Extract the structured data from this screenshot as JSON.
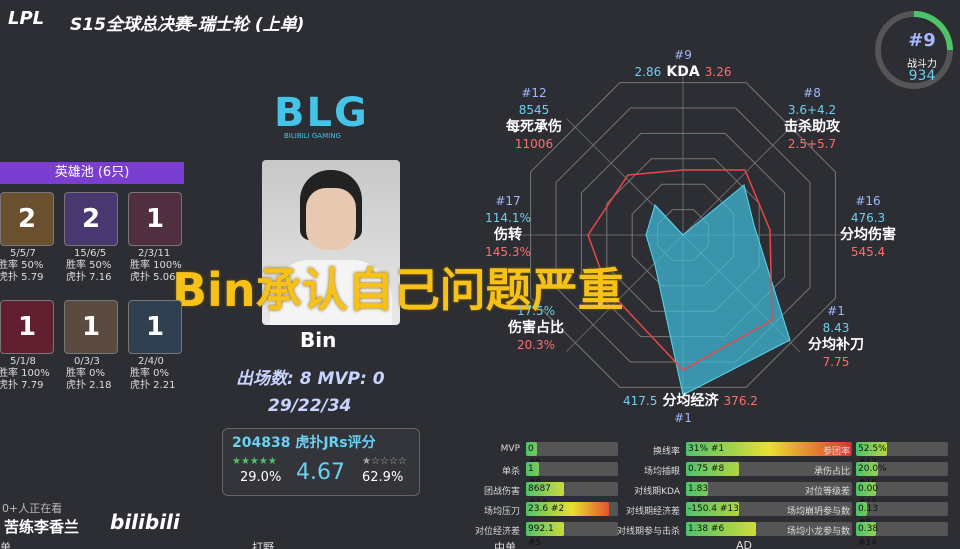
{
  "header": {
    "logo": "LPL",
    "title": "S15全球总决赛-瑞士轮 (上单)"
  },
  "power": {
    "rank": "#9",
    "label": "战斗力",
    "value": "934"
  },
  "team": {
    "logo": "BLG",
    "name": "BILIBILI GAMING"
  },
  "hero_pool": {
    "title": "英雄池 (6只)",
    "heroes": [
      {
        "games": "2",
        "kda": "5/5/7",
        "win_rate": "胜率 50%",
        "hupu": "虎扑 5.79"
      },
      {
        "games": "2",
        "kda": "15/6/5",
        "win_rate": "胜率 50%",
        "hupu": "虎扑 7.16"
      },
      {
        "games": "1",
        "kda": "2/3/11",
        "win_rate": "胜率 100%",
        "hupu": "虎扑 5.06"
      },
      {
        "games": "1",
        "kda": "5/1/8",
        "win_rate": "胜率 100%",
        "hupu": "虎扑 7.79"
      },
      {
        "games": "1",
        "kda": "0/3/3",
        "win_rate": "胜率 0%",
        "hupu": "虎扑 2.18"
      },
      {
        "games": "1",
        "kda": "2/4/0",
        "win_rate": "胜率 0%",
        "hupu": "虎扑 2.21"
      }
    ]
  },
  "player": {
    "name": "Bin",
    "stats": "出场数: 8  MVP: 0",
    "kda": "29/22/34"
  },
  "rating": {
    "title": "204838 虎扑JRs评分",
    "low_share": "29.0%",
    "score": "4.67",
    "high_share": "62.9%"
  },
  "radar": {
    "axes": [
      {
        "rank": "#9",
        "label": "KDA",
        "value": "2.86",
        "average": "3.26"
      },
      {
        "rank": "#8",
        "label": "击杀助攻",
        "value": "3.6+4.2",
        "average": "2.5+5.7"
      },
      {
        "rank": "#16",
        "label": "分均伤害",
        "value": "476.3",
        "average": "545.4"
      },
      {
        "rank": "#1",
        "label": "分均补刀",
        "value": "8.43",
        "average": "7.75"
      },
      {
        "rank": "#1",
        "label": "分均经济",
        "value": "417.5",
        "average": "376.2"
      },
      {
        "label": "伤害占比",
        "value": "17.5%",
        "average": "20.3%"
      },
      {
        "rank": "#17",
        "label": "伤转",
        "value": "114.1%",
        "average": "145.3%"
      },
      {
        "rank": "#12",
        "label": "每死承伤",
        "value": "8545",
        "average": "11006"
      }
    ]
  },
  "caption": "Bin承认自己问题严重",
  "stats": {
    "columns": [
      [
        {
          "label": "MVP",
          "value": "0 #5"
        },
        {
          "label": "单杀",
          "value": "1 #9"
        },
        {
          "label": "团战伤害",
          "value": "8687 #14"
        },
        {
          "label": "场均压刀",
          "value": "23.6 #2"
        },
        {
          "label": "对位经济差",
          "value": "992.1 #5"
        }
      ],
      [
        {
          "label": "换线率",
          "value": "31% #1"
        },
        {
          "label": "场均插眼",
          "value": "0.75 #8"
        },
        {
          "label": "对线期KDA",
          "value": "1.83 #8"
        },
        {
          "label": "对线期经济差",
          "value": "-150.4 #13"
        },
        {
          "label": "对线期参与击杀",
          "value": "1.38 #6"
        }
      ],
      [
        {
          "label": "参团率",
          "value": "52.5% #12"
        },
        {
          "label": "承伤占比",
          "value": "20.0% #16"
        },
        {
          "label": "对位等级差",
          "value": "0.00 #11"
        },
        {
          "label": "场均崩坍参与数",
          "value": "0.13 #8"
        },
        {
          "label": "场均小龙参与数",
          "value": "0.38 #14"
        }
      ]
    ]
  },
  "stream": {
    "viewers": "0+人正在看",
    "uploader": "苦练李香兰",
    "site": "bilibili"
  },
  "tabs": [
    "单",
    "打野",
    "中单",
    "AD"
  ]
}
